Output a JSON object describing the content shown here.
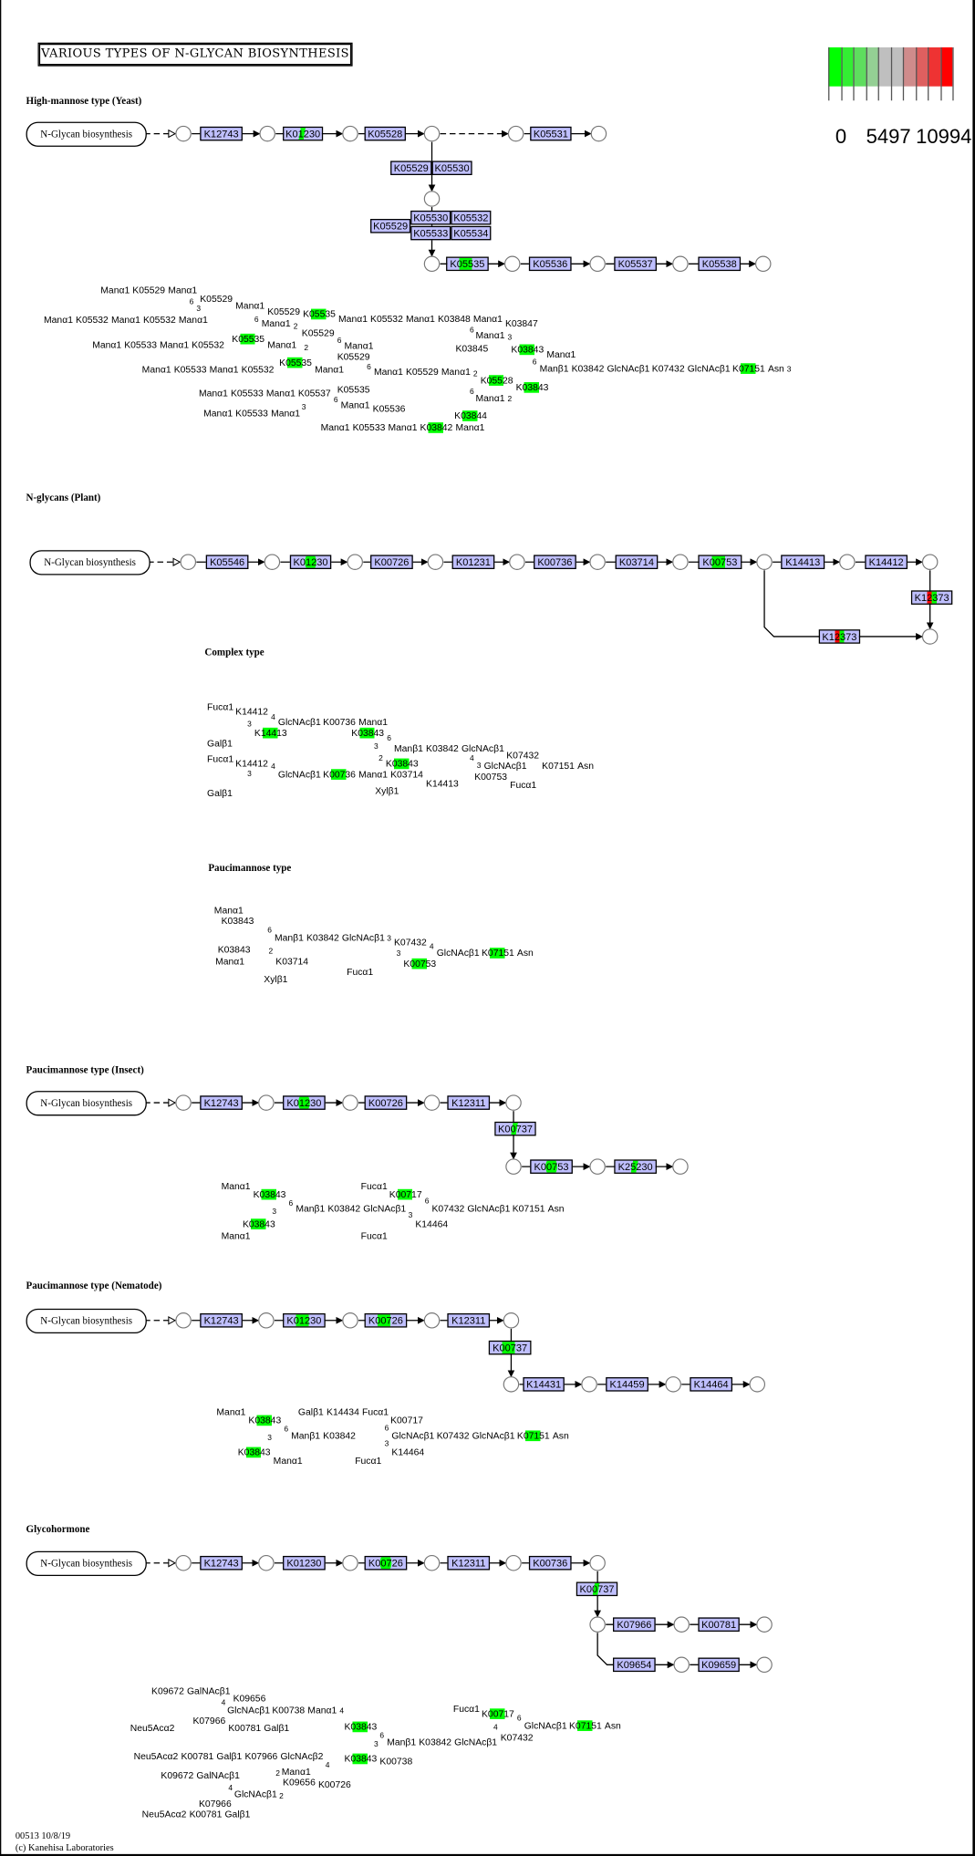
{
  "title": "VARIOUS TYPES OF N-GLYCAN BIOSYNTHESIS",
  "legend": {
    "colors": [
      "#00ff00",
      "#33ee33",
      "#5edd5e",
      "#94cf94",
      "#bfbfbf",
      "#bfbfbf",
      "#cf8b8b",
      "#de5f5f",
      "#ee3333",
      "#ff0000"
    ],
    "ticks": [
      "0",
      "5497",
      "10994"
    ]
  },
  "start_map": "N-Glycan biosynthesis",
  "sections": [
    {
      "heading": "High-mannose type (Yeast)",
      "genes": [
        {
          "label": "K12743",
          "hl": "none"
        },
        {
          "label": "K01230",
          "hl": "green-partial"
        },
        {
          "label": "K05528",
          "hl": "none"
        },
        {
          "label": "K05531",
          "hl": "none"
        },
        {
          "label": "K05529",
          "hl": "none"
        },
        {
          "label": "K05530",
          "hl": "none"
        },
        {
          "label": "K05529",
          "hl": "none"
        },
        {
          "label": "K05530",
          "hl": "none"
        },
        {
          "label": "K05532",
          "hl": "none"
        },
        {
          "label": "K05533",
          "hl": "none"
        },
        {
          "label": "K05534",
          "hl": "none"
        },
        {
          "label": "K05535",
          "hl": "green"
        },
        {
          "label": "K05536",
          "hl": "none"
        },
        {
          "label": "K05537",
          "hl": "none"
        },
        {
          "label": "K05538",
          "hl": "none"
        }
      ],
      "glycan": [
        {
          "t": "Manα1"
        },
        {
          "t": "K05529"
        },
        {
          "t": "Manα1"
        },
        {
          "t": "K05529"
        },
        {
          "t": "6"
        },
        {
          "t": "3"
        },
        {
          "t": "Manα1"
        },
        {
          "t": "K05535",
          "hl": true
        },
        {
          "t": "Manα1"
        },
        {
          "t": "K05532"
        },
        {
          "t": "Manα1"
        },
        {
          "t": "K05532"
        },
        {
          "t": "Manα1"
        },
        {
          "t": "K05529"
        },
        {
          "t": "6"
        },
        {
          "t": "2"
        },
        {
          "t": "Manα1"
        },
        {
          "t": "Manα1"
        },
        {
          "t": "K05533"
        },
        {
          "t": "Manα1"
        },
        {
          "t": "K05532"
        },
        {
          "t": "Manα1"
        },
        {
          "t": "K05535",
          "hl": true
        },
        {
          "t": "K05529"
        },
        {
          "t": "6"
        },
        {
          "t": "2"
        },
        {
          "t": "Manα1"
        },
        {
          "t": "K05535",
          "hl": true
        },
        {
          "t": "Manα1"
        },
        {
          "t": "K05533"
        },
        {
          "t": "Manα1"
        },
        {
          "t": "K05532"
        },
        {
          "t": "Manα1"
        },
        {
          "t": "K05529"
        },
        {
          "t": "6"
        },
        {
          "t": "2"
        },
        {
          "t": "Manα1"
        },
        {
          "t": "K05529"
        },
        {
          "t": "Manα1"
        },
        {
          "t": "Manα1"
        },
        {
          "t": "K05532"
        },
        {
          "t": "Manα1"
        },
        {
          "t": "K03848"
        },
        {
          "t": "Manα1"
        },
        {
          "t": "K03847"
        },
        {
          "t": "6"
        },
        {
          "t": "3"
        },
        {
          "t": "Manα1"
        },
        {
          "t": "K03845"
        },
        {
          "t": "Manα1"
        },
        {
          "t": "K03843",
          "hl": true
        },
        {
          "t": "6"
        },
        {
          "t": "3"
        },
        {
          "t": "Manβ1"
        },
        {
          "t": "K03842"
        },
        {
          "t": "GlcNAcβ1"
        },
        {
          "t": "K07432"
        },
        {
          "t": "GlcNAcβ1"
        },
        {
          "t": "K07151",
          "hl": true
        },
        {
          "t": "Asn"
        },
        {
          "t": "K05528",
          "hl": true
        },
        {
          "t": "K03843",
          "hl": true
        },
        {
          "t": "6"
        },
        {
          "t": "2"
        },
        {
          "t": "Manα1"
        },
        {
          "t": "K03844",
          "hl": true
        },
        {
          "t": "Manα1"
        },
        {
          "t": "K05533"
        },
        {
          "t": "Manα1"
        },
        {
          "t": "K05537"
        },
        {
          "t": "K05536"
        },
        {
          "t": "6"
        },
        {
          "t": "3"
        },
        {
          "t": "Manα1"
        },
        {
          "t": "Manα1"
        },
        {
          "t": "K05533"
        },
        {
          "t": "Manα1"
        },
        {
          "t": "K05535"
        },
        {
          "t": "Manα1"
        },
        {
          "t": "K05533"
        },
        {
          "t": "Manα1"
        },
        {
          "t": "K03842",
          "hl": true
        },
        {
          "t": "Manα1"
        }
      ]
    },
    {
      "heading": "N-glycans (Plant)",
      "genes": [
        {
          "label": "K05546",
          "hl": "none"
        },
        {
          "label": "K01230",
          "hl": "green-diamond"
        },
        {
          "label": "K00726",
          "hl": "none"
        },
        {
          "label": "K01231",
          "hl": "none"
        },
        {
          "label": "K00736",
          "hl": "none"
        },
        {
          "label": "K03714",
          "hl": "none"
        },
        {
          "label": "K00753",
          "hl": "green"
        },
        {
          "label": "K14413",
          "hl": "none"
        },
        {
          "label": "K14412",
          "hl": "none"
        },
        {
          "label": "K12373",
          "hl": "red-green"
        },
        {
          "label": "K12373",
          "hl": "red-green"
        }
      ],
      "glycan": []
    },
    {
      "heading": "Complex type",
      "genes": [],
      "glycan": [
        {
          "t": "Fucα1"
        },
        {
          "t": "K14412"
        },
        {
          "t": "4"
        },
        {
          "t": "3"
        },
        {
          "t": "GlcNAcβ1"
        },
        {
          "t": "K00736"
        },
        {
          "t": "Manα1"
        },
        {
          "t": "K03843",
          "hl": true
        },
        {
          "t": "K14413",
          "hl": true
        },
        {
          "t": "Galβ1"
        },
        {
          "t": "6"
        },
        {
          "t": "3"
        },
        {
          "t": "Manβ1"
        },
        {
          "t": "K03842"
        },
        {
          "t": "GlcNAcβ1"
        },
        {
          "t": "K07432"
        },
        {
          "t": "Fucα1"
        },
        {
          "t": "K14412"
        },
        {
          "t": "4"
        },
        {
          "t": "3"
        },
        {
          "t": "GlcNAcβ1"
        },
        {
          "t": "K00736",
          "hl": true
        },
        {
          "t": "Manα1"
        },
        {
          "t": "K03843",
          "hl": true
        },
        {
          "t": "2"
        },
        {
          "t": "K03714"
        },
        {
          "t": "K14413"
        },
        {
          "t": "Galβ1"
        },
        {
          "t": "Xylβ1"
        },
        {
          "t": "4"
        },
        {
          "t": "3"
        },
        {
          "t": "GlcNAcβ1"
        },
        {
          "t": "K07151"
        },
        {
          "t": "Asn"
        },
        {
          "t": "K00753"
        },
        {
          "t": "Fucα1"
        }
      ]
    },
    {
      "heading": "Paucimannose type",
      "genes": [],
      "glycan": [
        {
          "t": "Manα1"
        },
        {
          "t": "K03843"
        },
        {
          "t": "6"
        },
        {
          "t": "3"
        },
        {
          "t": "Manβ1"
        },
        {
          "t": "K03842"
        },
        {
          "t": "GlcNAcβ1"
        },
        {
          "t": "K07432"
        },
        {
          "t": "K03843"
        },
        {
          "t": "Manα1"
        },
        {
          "t": "2"
        },
        {
          "t": "K03714"
        },
        {
          "t": "Xylβ1"
        },
        {
          "t": "4"
        },
        {
          "t": "3"
        },
        {
          "t": "GlcNAcβ1"
        },
        {
          "t": "K07151",
          "hl": true
        },
        {
          "t": "Asn"
        },
        {
          "t": "K00753",
          "hl": true
        },
        {
          "t": "Fucα1"
        }
      ]
    },
    {
      "heading": "Paucimannose type (Insect)",
      "genes": [
        {
          "label": "K12743",
          "hl": "none"
        },
        {
          "label": "K01230",
          "hl": "green-diamond"
        },
        {
          "label": "K00726",
          "hl": "none"
        },
        {
          "label": "K12311",
          "hl": "none"
        },
        {
          "label": "K00737",
          "hl": "green-partial"
        },
        {
          "label": "K00753",
          "hl": "green-diamond"
        },
        {
          "label": "K25230",
          "hl": "green-partial"
        }
      ],
      "glycan": [
        {
          "t": "Manα1"
        },
        {
          "t": "K03843",
          "hl": true
        },
        {
          "t": "6"
        },
        {
          "t": "3"
        },
        {
          "t": "Manβ1"
        },
        {
          "t": "K03842"
        },
        {
          "t": "GlcNAcβ1"
        },
        {
          "t": "K07432"
        },
        {
          "t": "GlcNAcβ1"
        },
        {
          "t": "K07151"
        },
        {
          "t": "Asn"
        },
        {
          "t": "Fucα1"
        },
        {
          "t": "K00717",
          "hl": true
        },
        {
          "t": "6"
        },
        {
          "t": "3"
        },
        {
          "t": "K03843",
          "hl": true
        },
        {
          "t": "Manα1"
        },
        {
          "t": "K14464"
        },
        {
          "t": "Fucα1"
        }
      ]
    },
    {
      "heading": "Paucimannose type (Nematode)",
      "genes": [
        {
          "label": "K12743",
          "hl": "none"
        },
        {
          "label": "K01230",
          "hl": "green"
        },
        {
          "label": "K00726",
          "hl": "green"
        },
        {
          "label": "K12311",
          "hl": "none"
        },
        {
          "label": "K00737",
          "hl": "green"
        },
        {
          "label": "K14431",
          "hl": "none"
        },
        {
          "label": "K14459",
          "hl": "none"
        },
        {
          "label": "K14464",
          "hl": "none"
        }
      ],
      "glycan": [
        {
          "t": "Manα1"
        },
        {
          "t": "K03843",
          "hl": true
        },
        {
          "t": "Galβ1"
        },
        {
          "t": "K14434"
        },
        {
          "t": "Fucα1"
        },
        {
          "t": "K00717"
        },
        {
          "t": "6"
        },
        {
          "t": "6"
        },
        {
          "t": "3"
        },
        {
          "t": "Manβ1"
        },
        {
          "t": "K03842"
        },
        {
          "t": "GlcNAcβ1"
        },
        {
          "t": "K07432"
        },
        {
          "t": "GlcNAcβ1"
        },
        {
          "t": "K07151",
          "hl": true
        },
        {
          "t": "Asn"
        },
        {
          "t": "3"
        },
        {
          "t": "K03843",
          "hl": true
        },
        {
          "t": "K14464"
        },
        {
          "t": "Manα1"
        },
        {
          "t": "Fucα1"
        }
      ]
    },
    {
      "heading": "Glycohormone",
      "genes": [
        {
          "label": "K12743",
          "hl": "none"
        },
        {
          "label": "K01230",
          "hl": "none"
        },
        {
          "label": "K00726",
          "hl": "green-diamond"
        },
        {
          "label": "K12311",
          "hl": "none"
        },
        {
          "label": "K00736",
          "hl": "none"
        },
        {
          "label": "K00737",
          "hl": "green-partial"
        },
        {
          "label": "K07966",
          "hl": "none"
        },
        {
          "label": "K00781",
          "hl": "none"
        },
        {
          "label": "K09654",
          "hl": "none"
        },
        {
          "label": "K09659",
          "hl": "none"
        }
      ],
      "glycan": [
        {
          "t": "K09672"
        },
        {
          "t": "GalNAcβ1"
        },
        {
          "t": "K09656"
        },
        {
          "t": "4"
        },
        {
          "t": "4"
        },
        {
          "t": "GlcNAcβ1"
        },
        {
          "t": "K00738"
        },
        {
          "t": "Manα1"
        },
        {
          "t": "K07966"
        },
        {
          "t": "Neu5Acα2"
        },
        {
          "t": "K00781"
        },
        {
          "t": "Galβ1"
        },
        {
          "t": "K03843",
          "hl": true
        },
        {
          "t": "6"
        },
        {
          "t": "3"
        },
        {
          "t": "Manβ1"
        },
        {
          "t": "K03842"
        },
        {
          "t": "GlcNAcβ1"
        },
        {
          "t": "Fucα1"
        },
        {
          "t": "K00717",
          "hl": true
        },
        {
          "t": "6"
        },
        {
          "t": "4"
        },
        {
          "t": "GlcNAcβ1"
        },
        {
          "t": "K07151",
          "hl": true
        },
        {
          "t": "Asn"
        },
        {
          "t": "K07432"
        },
        {
          "t": "Neu5Acα2"
        },
        {
          "t": "K00781"
        },
        {
          "t": "Galβ1"
        },
        {
          "t": "K07966"
        },
        {
          "t": "GlcNAcβ2"
        },
        {
          "t": "K00738"
        },
        {
          "t": "K03843",
          "hl": true
        },
        {
          "t": "K09672"
        },
        {
          "t": "GalNAcβ1"
        },
        {
          "t": "K09656"
        },
        {
          "t": "4"
        },
        {
          "t": "2"
        },
        {
          "t": "Manα1"
        },
        {
          "t": "K00726"
        },
        {
          "t": "4"
        },
        {
          "t": "2"
        },
        {
          "t": "GlcNAcβ1"
        },
        {
          "t": "K07966"
        },
        {
          "t": "Neu5Acα2"
        },
        {
          "t": "K00781"
        },
        {
          "t": "Galβ1"
        }
      ]
    }
  ],
  "footer": {
    "map_id_date": "00513 10/8/19",
    "copyright": "(c) Kanehisa Laboratories"
  }
}
